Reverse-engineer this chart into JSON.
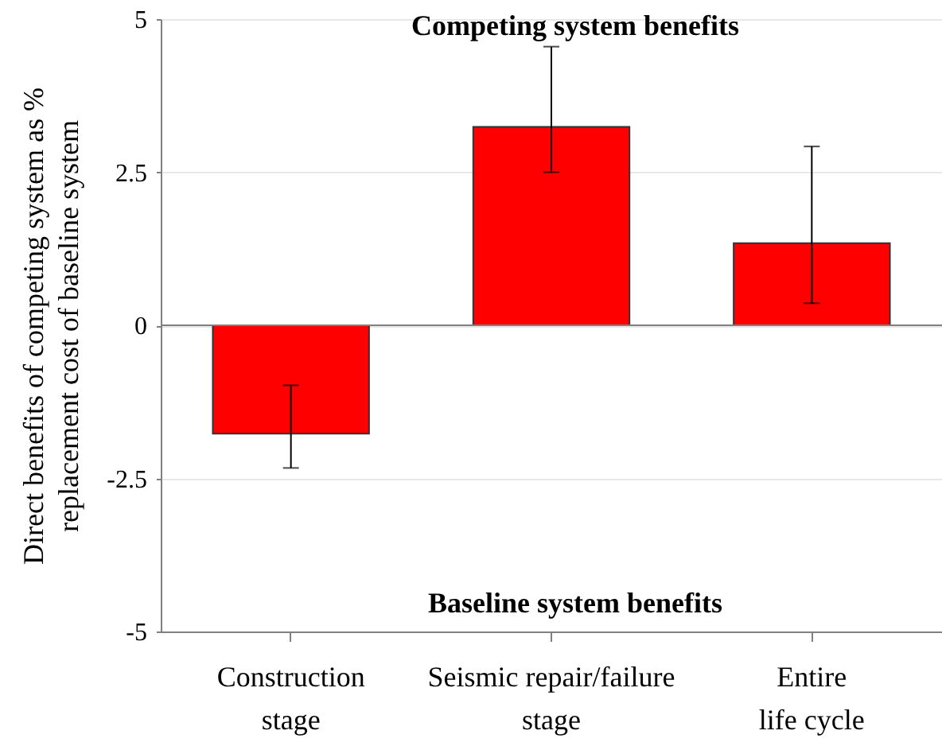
{
  "chart_data": {
    "type": "bar",
    "ylabel": "Direct benefits of competing system as %\nreplacement cost of baseline system",
    "categories": [
      "Construction\nstage",
      "Seismic repair/failure\nstage",
      "Entire\nlife cycle"
    ],
    "values": [
      -1.77,
      3.24,
      1.34
    ],
    "color": "#ff0000",
    "errors": [
      [
        -2.33,
        -0.98
      ],
      [
        2.5,
        4.55
      ],
      [
        0.36,
        2.92
      ]
    ],
    "ylim": [
      -5,
      5
    ],
    "yticks": [
      -5,
      -2.5,
      0,
      2.5,
      5
    ],
    "grid": "y",
    "ref_lines": [
      {
        "axis": "y",
        "value": 0,
        "color": "#808080"
      }
    ],
    "annotations": [
      "Competing system benefits",
      "Baseline system benefits"
    ]
  }
}
